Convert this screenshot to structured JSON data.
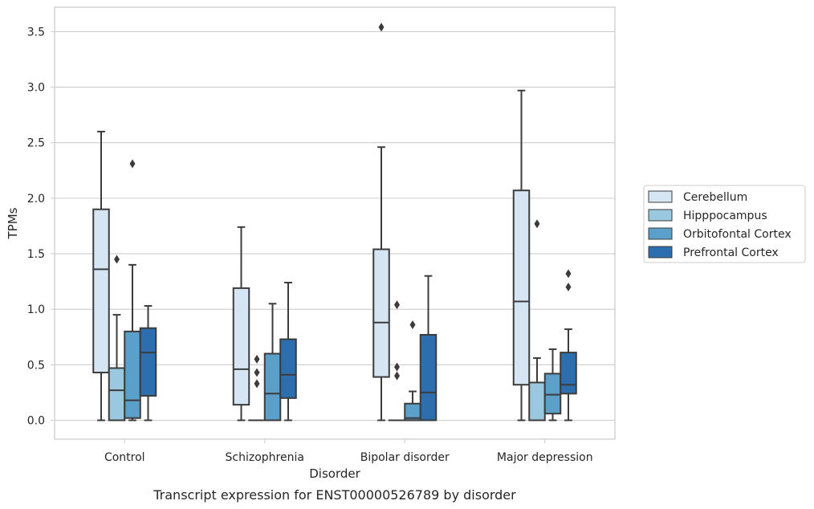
{
  "chart_data": {
    "type": "box",
    "title": "",
    "caption": "Transcript expression for ENST00000526789 by disorder",
    "xlabel": "Disorder",
    "ylabel": "TPMs",
    "ylim": [
      -0.17,
      3.72
    ],
    "yticks": [
      "0.0",
      "0.5",
      "1.0",
      "1.5",
      "2.0",
      "2.5",
      "3.0",
      "3.5"
    ],
    "ytick_values": [
      0,
      0.5,
      1,
      1.5,
      2,
      2.5,
      3,
      3.5
    ],
    "grid": true,
    "legend_position": "right",
    "categories": [
      "Control",
      "Schizophrenia",
      "Bipolar disorder",
      "Major depression"
    ],
    "series": [
      {
        "name": "Cerebellum",
        "color": "#d6e5f4",
        "boxes": [
          {
            "whislo": 0.0,
            "q1": 0.43,
            "med": 1.36,
            "q3": 1.9,
            "whishi": 2.6,
            "fliers": []
          },
          {
            "whislo": 0.0,
            "q1": 0.14,
            "med": 0.46,
            "q3": 1.19,
            "whishi": 1.74,
            "fliers": []
          },
          {
            "whislo": 0.0,
            "q1": 0.39,
            "med": 0.88,
            "q3": 1.54,
            "whishi": 2.46,
            "fliers": [
              3.54
            ]
          },
          {
            "whislo": 0.0,
            "q1": 0.32,
            "med": 1.07,
            "q3": 2.07,
            "whishi": 2.97,
            "fliers": []
          }
        ]
      },
      {
        "name": "Hipppocampus",
        "color": "#9ac8e0",
        "boxes": [
          {
            "whislo": 0.0,
            "q1": 0.0,
            "med": 0.27,
            "q3": 0.47,
            "whishi": 0.95,
            "fliers": [
              1.45
            ]
          },
          {
            "whislo": 0.0,
            "q1": 0.0,
            "med": 0.0,
            "q3": 0.0,
            "whishi": 0.0,
            "fliers": [
              0.33,
              0.43,
              0.55
            ]
          },
          {
            "whislo": 0.0,
            "q1": 0.0,
            "med": 0.0,
            "q3": 0.0,
            "whishi": 0.0,
            "fliers": [
              0.4,
              0.48,
              1.04
            ]
          },
          {
            "whislo": 0.0,
            "q1": 0.0,
            "med": 0.0,
            "q3": 0.34,
            "whishi": 0.56,
            "fliers": [
              1.77
            ]
          }
        ]
      },
      {
        "name": "Orbitofontal Cortex",
        "color": "#5b9fcb",
        "boxes": [
          {
            "whislo": 0.0,
            "q1": 0.02,
            "med": 0.18,
            "q3": 0.8,
            "whishi": 1.4,
            "fliers": [
              2.31
            ]
          },
          {
            "whislo": 0.0,
            "q1": 0.0,
            "med": 0.24,
            "q3": 0.6,
            "whishi": 1.05,
            "fliers": []
          },
          {
            "whislo": 0.0,
            "q1": 0.0,
            "med": 0.02,
            "q3": 0.15,
            "whishi": 0.26,
            "fliers": [
              0.86
            ]
          },
          {
            "whislo": 0.0,
            "q1": 0.06,
            "med": 0.23,
            "q3": 0.42,
            "whishi": 0.64,
            "fliers": []
          }
        ]
      },
      {
        "name": "Prefrontal Cortex",
        "color": "#2d6eae",
        "boxes": [
          {
            "whislo": 0.0,
            "q1": 0.22,
            "med": 0.61,
            "q3": 0.83,
            "whishi": 1.03,
            "fliers": []
          },
          {
            "whislo": 0.0,
            "q1": 0.2,
            "med": 0.41,
            "q3": 0.73,
            "whishi": 1.24,
            "fliers": []
          },
          {
            "whislo": 0.0,
            "q1": 0.0,
            "med": 0.25,
            "q3": 0.77,
            "whishi": 1.3,
            "fliers": []
          },
          {
            "whislo": 0.0,
            "q1": 0.24,
            "med": 0.32,
            "q3": 0.61,
            "whishi": 0.82,
            "fliers": [
              1.2,
              1.32
            ]
          }
        ]
      }
    ]
  }
}
